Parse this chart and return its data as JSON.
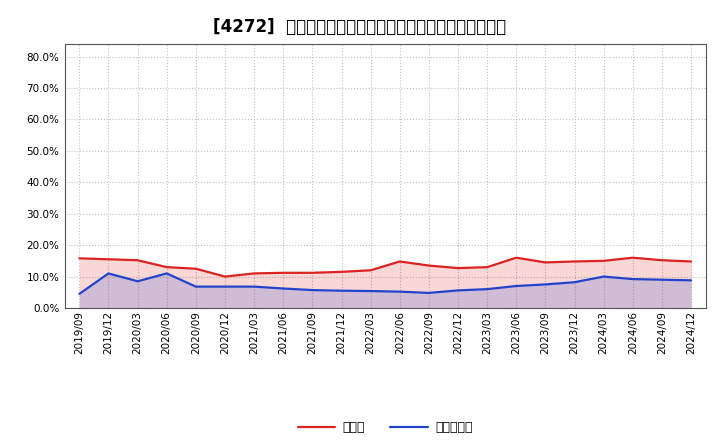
{
  "title": "[4272]  現預金、有利子負債の総資産に対する比率の推移",
  "x_labels": [
    "2019/09",
    "2019/12",
    "2020/03",
    "2020/06",
    "2020/09",
    "2020/12",
    "2021/03",
    "2021/06",
    "2021/09",
    "2021/12",
    "2022/03",
    "2022/06",
    "2022/09",
    "2022/12",
    "2023/03",
    "2023/06",
    "2023/09",
    "2023/12",
    "2024/03",
    "2024/06",
    "2024/09",
    "2024/12"
  ],
  "cash_ratio": [
    0.158,
    0.155,
    0.152,
    0.13,
    0.125,
    0.1,
    0.11,
    0.112,
    0.112,
    0.115,
    0.12,
    0.148,
    0.135,
    0.127,
    0.13,
    0.16,
    0.145,
    0.148,
    0.15,
    0.16,
    0.152,
    0.148
  ],
  "debt_ratio": [
    0.045,
    0.11,
    0.085,
    0.11,
    0.068,
    0.068,
    0.068,
    0.062,
    0.057,
    0.055,
    0.054,
    0.052,
    0.048,
    0.056,
    0.06,
    0.07,
    0.075,
    0.082,
    0.1,
    0.092,
    0.09,
    0.088
  ],
  "cash_color": "#dd2222",
  "debt_color": "#2244cc",
  "background_color": "#ffffff",
  "plot_bg_color": "#ffffff",
  "grid_color": "#bbbbbb",
  "ylim_min": 0.0,
  "ylim_max": 0.84,
  "yticks": [
    0.0,
    0.1,
    0.2,
    0.3,
    0.4,
    0.5,
    0.6,
    0.7,
    0.8
  ],
  "legend_cash": "現預金",
  "legend_debt": "有利子負債",
  "title_fontsize": 12,
  "tick_fontsize": 7.5,
  "legend_fontsize": 9
}
